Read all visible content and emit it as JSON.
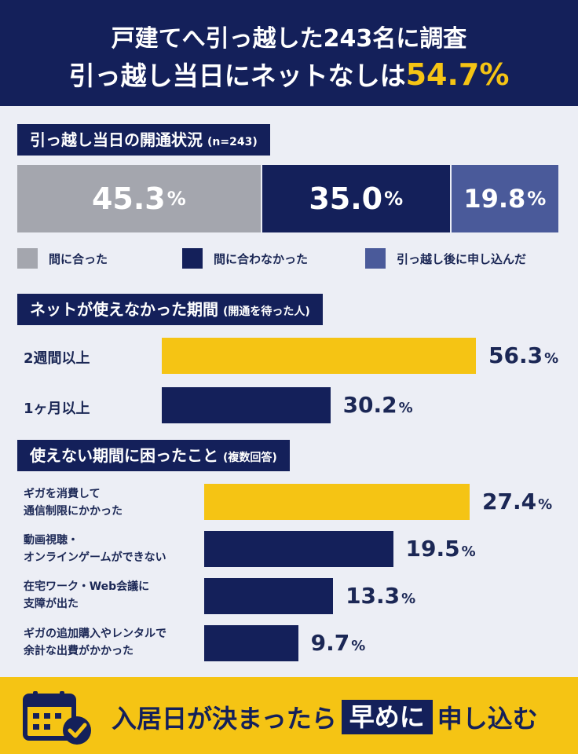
{
  "header": {
    "line1": "戸建てへ引っ越した243名に調査",
    "line2_prefix": "引っ越し当日にネットなしは",
    "line2_value": "54.7%"
  },
  "section1": {
    "title": "引っ越し当日の開通状況",
    "note": "(n=243)"
  },
  "section2": {
    "title": "ネットが使えなかった期間",
    "note": "(開通を待った人)"
  },
  "section3": {
    "title": "使えない期間に困ったこと",
    "note": "(複数回答)"
  },
  "percent_sign": "%",
  "footer": {
    "text_before": "入居日が決まったら",
    "text_boxed": "早めに",
    "text_after": "申し込む",
    "icon": "calendar-check-icon"
  },
  "colors": {
    "navy": "#14205a",
    "gray": "#a4a6ae",
    "slate": "#4a5a9a",
    "yellow": "#f5c414"
  },
  "chart_data": [
    {
      "type": "bar",
      "stacked": true,
      "orientation": "horizontal",
      "unit": "%",
      "categories": [
        "間に合った",
        "間に合わなかった",
        "引っ越し後に申し込んだ"
      ],
      "values": [
        "45.3",
        "35.0",
        "19.8"
      ],
      "colors": [
        "#a4a6ae",
        "#14205a",
        "#4a5a9a"
      ],
      "legend_position": "bottom"
    },
    {
      "type": "bar",
      "orientation": "horizontal",
      "unit": "%",
      "categories": [
        "2週間以上",
        "1ヶ月以上"
      ],
      "values": [
        "56.3",
        "30.2"
      ],
      "colors": [
        "#f5c414",
        "#14205a"
      ]
    },
    {
      "type": "bar",
      "orientation": "horizontal",
      "unit": "%",
      "categories": [
        [
          "ギガを消費して",
          "通信制限にかかった"
        ],
        [
          "動画視聴・",
          "オンラインゲームができない"
        ],
        [
          "在宅ワーク・Web会議に",
          "支障が出た"
        ],
        [
          "ギガの追加購入やレンタルで",
          "余計な出費がかかった"
        ]
      ],
      "values": [
        "27.4",
        "19.5",
        "13.3",
        "9.7"
      ],
      "colors": [
        "#f5c414",
        "#14205a",
        "#14205a",
        "#14205a"
      ]
    }
  ]
}
